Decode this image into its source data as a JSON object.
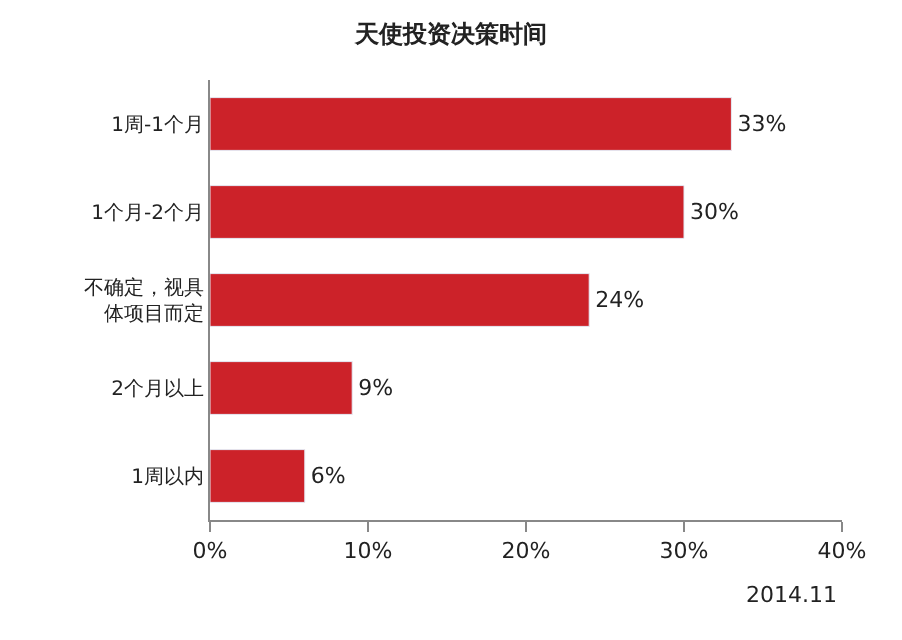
{
  "chart_data": {
    "type": "bar",
    "orientation": "horizontal",
    "title": "天使投资决策时间",
    "categories": [
      "1周-1个月",
      "1个月-2个月",
      "不确定，视具体项目而定",
      "2个月以上",
      "1周以内"
    ],
    "values": [
      33,
      30,
      24,
      9,
      6
    ],
    "value_labels": [
      "33%",
      "30%",
      "24%",
      "9%",
      "6%"
    ],
    "color": "#cc2229",
    "xlim": [
      0,
      40
    ],
    "xticks": [
      {
        "value": 0,
        "label": "0%"
      },
      {
        "value": 10,
        "label": "10%"
      },
      {
        "value": 20,
        "label": "20%"
      },
      {
        "value": 30,
        "label": "30%"
      },
      {
        "value": 40,
        "label": "40%"
      }
    ],
    "grid": false,
    "annotations": [
      "2014.11"
    ]
  }
}
